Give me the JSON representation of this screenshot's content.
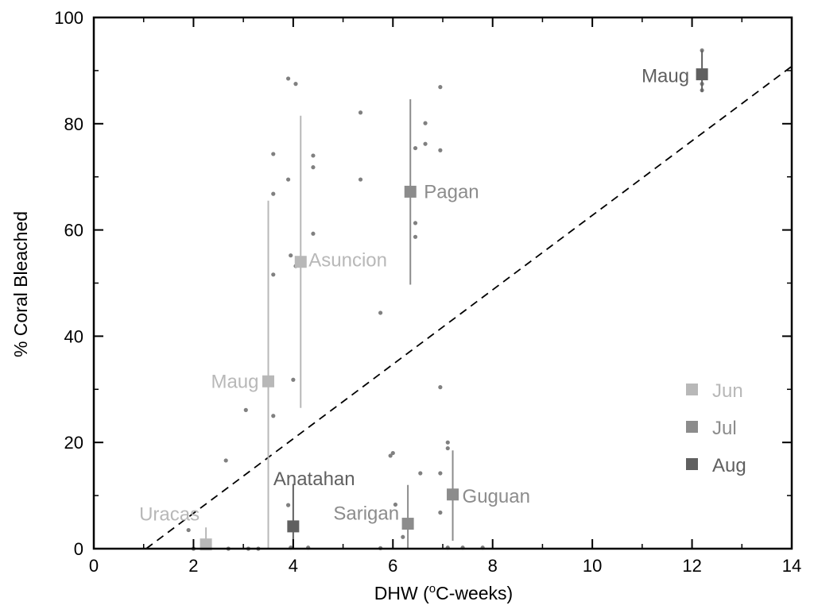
{
  "chart_data": {
    "type": "scatter",
    "xlabel_prefix": "DHW (",
    "xlabel_sup": "o",
    "xlabel_suffix": "C-weeks)",
    "ylabel": "% Coral Bleached",
    "xlim": [
      0,
      14
    ],
    "ylim": [
      0,
      100
    ],
    "x_ticks": [
      "0",
      "2",
      "4",
      "6",
      "8",
      "10",
      "12",
      "14"
    ],
    "y_ticks": [
      "0",
      "20",
      "40",
      "60",
      "80",
      "100"
    ],
    "legend_position": "bottom-right",
    "grid": false,
    "months": [
      {
        "name": "Jun",
        "color": "#b8b8b8"
      },
      {
        "name": "Jul",
        "color": "#8c8c8c"
      },
      {
        "name": "Aug",
        "color": "#606060"
      }
    ],
    "reference_line": {
      "style": "dashed",
      "from": [
        1.05,
        0
      ],
      "to": [
        14,
        90.8
      ]
    },
    "sites": [
      {
        "name": "Uracas",
        "month": "Jun",
        "x": 2.25,
        "y": 0.8,
        "range": [
          0,
          4
        ]
      },
      {
        "name": "Maug",
        "month": "Jun",
        "x": 3.5,
        "y": 31.5,
        "range": [
          0,
          65.5
        ]
      },
      {
        "name": "Asuncion",
        "month": "Jun",
        "x": 4.15,
        "y": 54,
        "range": [
          26.5,
          81.5
        ]
      },
      {
        "name": "Anatahan",
        "month": "Aug",
        "x": 4.0,
        "y": 4.2,
        "range": [
          0,
          12.2
        ]
      },
      {
        "name": "Sarigan",
        "month": "Jul",
        "x": 6.3,
        "y": 4.7,
        "range": [
          0,
          12
        ]
      },
      {
        "name": "Pagan",
        "month": "Jul",
        "x": 6.35,
        "y": 67.2,
        "range": [
          49.7,
          84.6
        ]
      },
      {
        "name": "Guguan",
        "month": "Jul",
        "x": 7.2,
        "y": 10.2,
        "range": [
          1.5,
          18.5
        ]
      },
      {
        "name": "Maug",
        "month": "Aug",
        "x": 12.2,
        "y": 89.3,
        "range": [
          86,
          93.8
        ]
      }
    ],
    "transects": [
      [
        1.9,
        3.5
      ],
      [
        2.0,
        0
      ],
      [
        2.65,
        16.6
      ],
      [
        2.7,
        0
      ],
      [
        3.05,
        26.1
      ],
      [
        3.1,
        0
      ],
      [
        3.3,
        0
      ],
      [
        3.6,
        74.3
      ],
      [
        3.6,
        66.8
      ],
      [
        3.6,
        51.6
      ],
      [
        3.6,
        25
      ],
      [
        3.9,
        88.5
      ],
      [
        3.9,
        69.5
      ],
      [
        3.95,
        55.2
      ],
      [
        3.9,
        8.2
      ],
      [
        4.0,
        31.8
      ],
      [
        4.05,
        87.5
      ],
      [
        4.05,
        53.2
      ],
      [
        3.95,
        0.2
      ],
      [
        4.4,
        74
      ],
      [
        4.4,
        71.8
      ],
      [
        4.4,
        59.3
      ],
      [
        4.3,
        0.2
      ],
      [
        5.35,
        82.1
      ],
      [
        5.35,
        69.5
      ],
      [
        5.75,
        44.4
      ],
      [
        5.75,
        0.1
      ],
      [
        5.95,
        17.5
      ],
      [
        6.0,
        18
      ],
      [
        6.05,
        8.3
      ],
      [
        6.2,
        2.2
      ],
      [
        6.45,
        75.4
      ],
      [
        6.45,
        61.3
      ],
      [
        6.45,
        58.7
      ],
      [
        6.55,
        14.2
      ],
      [
        6.65,
        80.1
      ],
      [
        6.65,
        76.2
      ],
      [
        6.95,
        86.9
      ],
      [
        6.95,
        75
      ],
      [
        6.95,
        30.4
      ],
      [
        6.95,
        14.2
      ],
      [
        6.95,
        6.8
      ],
      [
        7.1,
        20
      ],
      [
        7.1,
        18.9
      ],
      [
        7.1,
        0.2
      ],
      [
        7.4,
        0.2
      ],
      [
        7.8,
        0.2
      ],
      [
        12.2,
        93.8
      ],
      [
        12.2,
        87.5
      ],
      [
        12.2,
        86.3
      ]
    ]
  }
}
